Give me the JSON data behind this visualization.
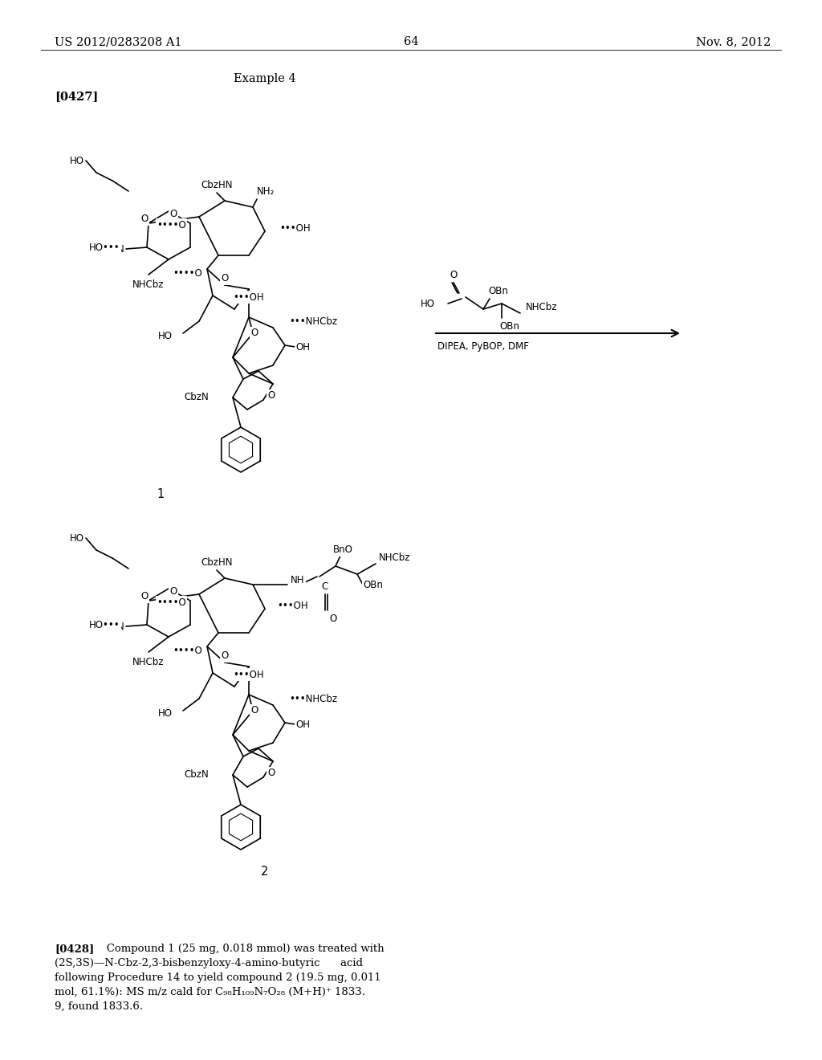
{
  "background_color": "#ffffff",
  "header": {
    "left_text": "US 2012/0283208 A1",
    "center_text": "64",
    "right_text": "Nov. 8, 2012",
    "font_size": 10.5
  },
  "example_label": {
    "text": "Example 4",
    "font_size": 10.5
  },
  "paragraph_label": {
    "text": "[0427]",
    "font_size": 10.5
  },
  "compound1_label": {
    "text": "1"
  },
  "compound2_label": {
    "text": "2"
  },
  "paragraph_0428_lines": [
    "[0428]   Compound 1 (25 mg, 0.018 mmol) was treated with",
    "(2S,3S)—N-Cbz-2,3-bisbenzyloxy-4-amino-butyric      acid",
    "following Procedure 14 to yield compound 2 (19.5 mg, 0.011",
    "mol, 61.1%): MS m/z cald for C98H109N7O28 (M+H)+ 1833.",
    "9, found 1833.6."
  ],
  "arrow_reagent_line1": "DIPEA, PyBOP, DMF"
}
